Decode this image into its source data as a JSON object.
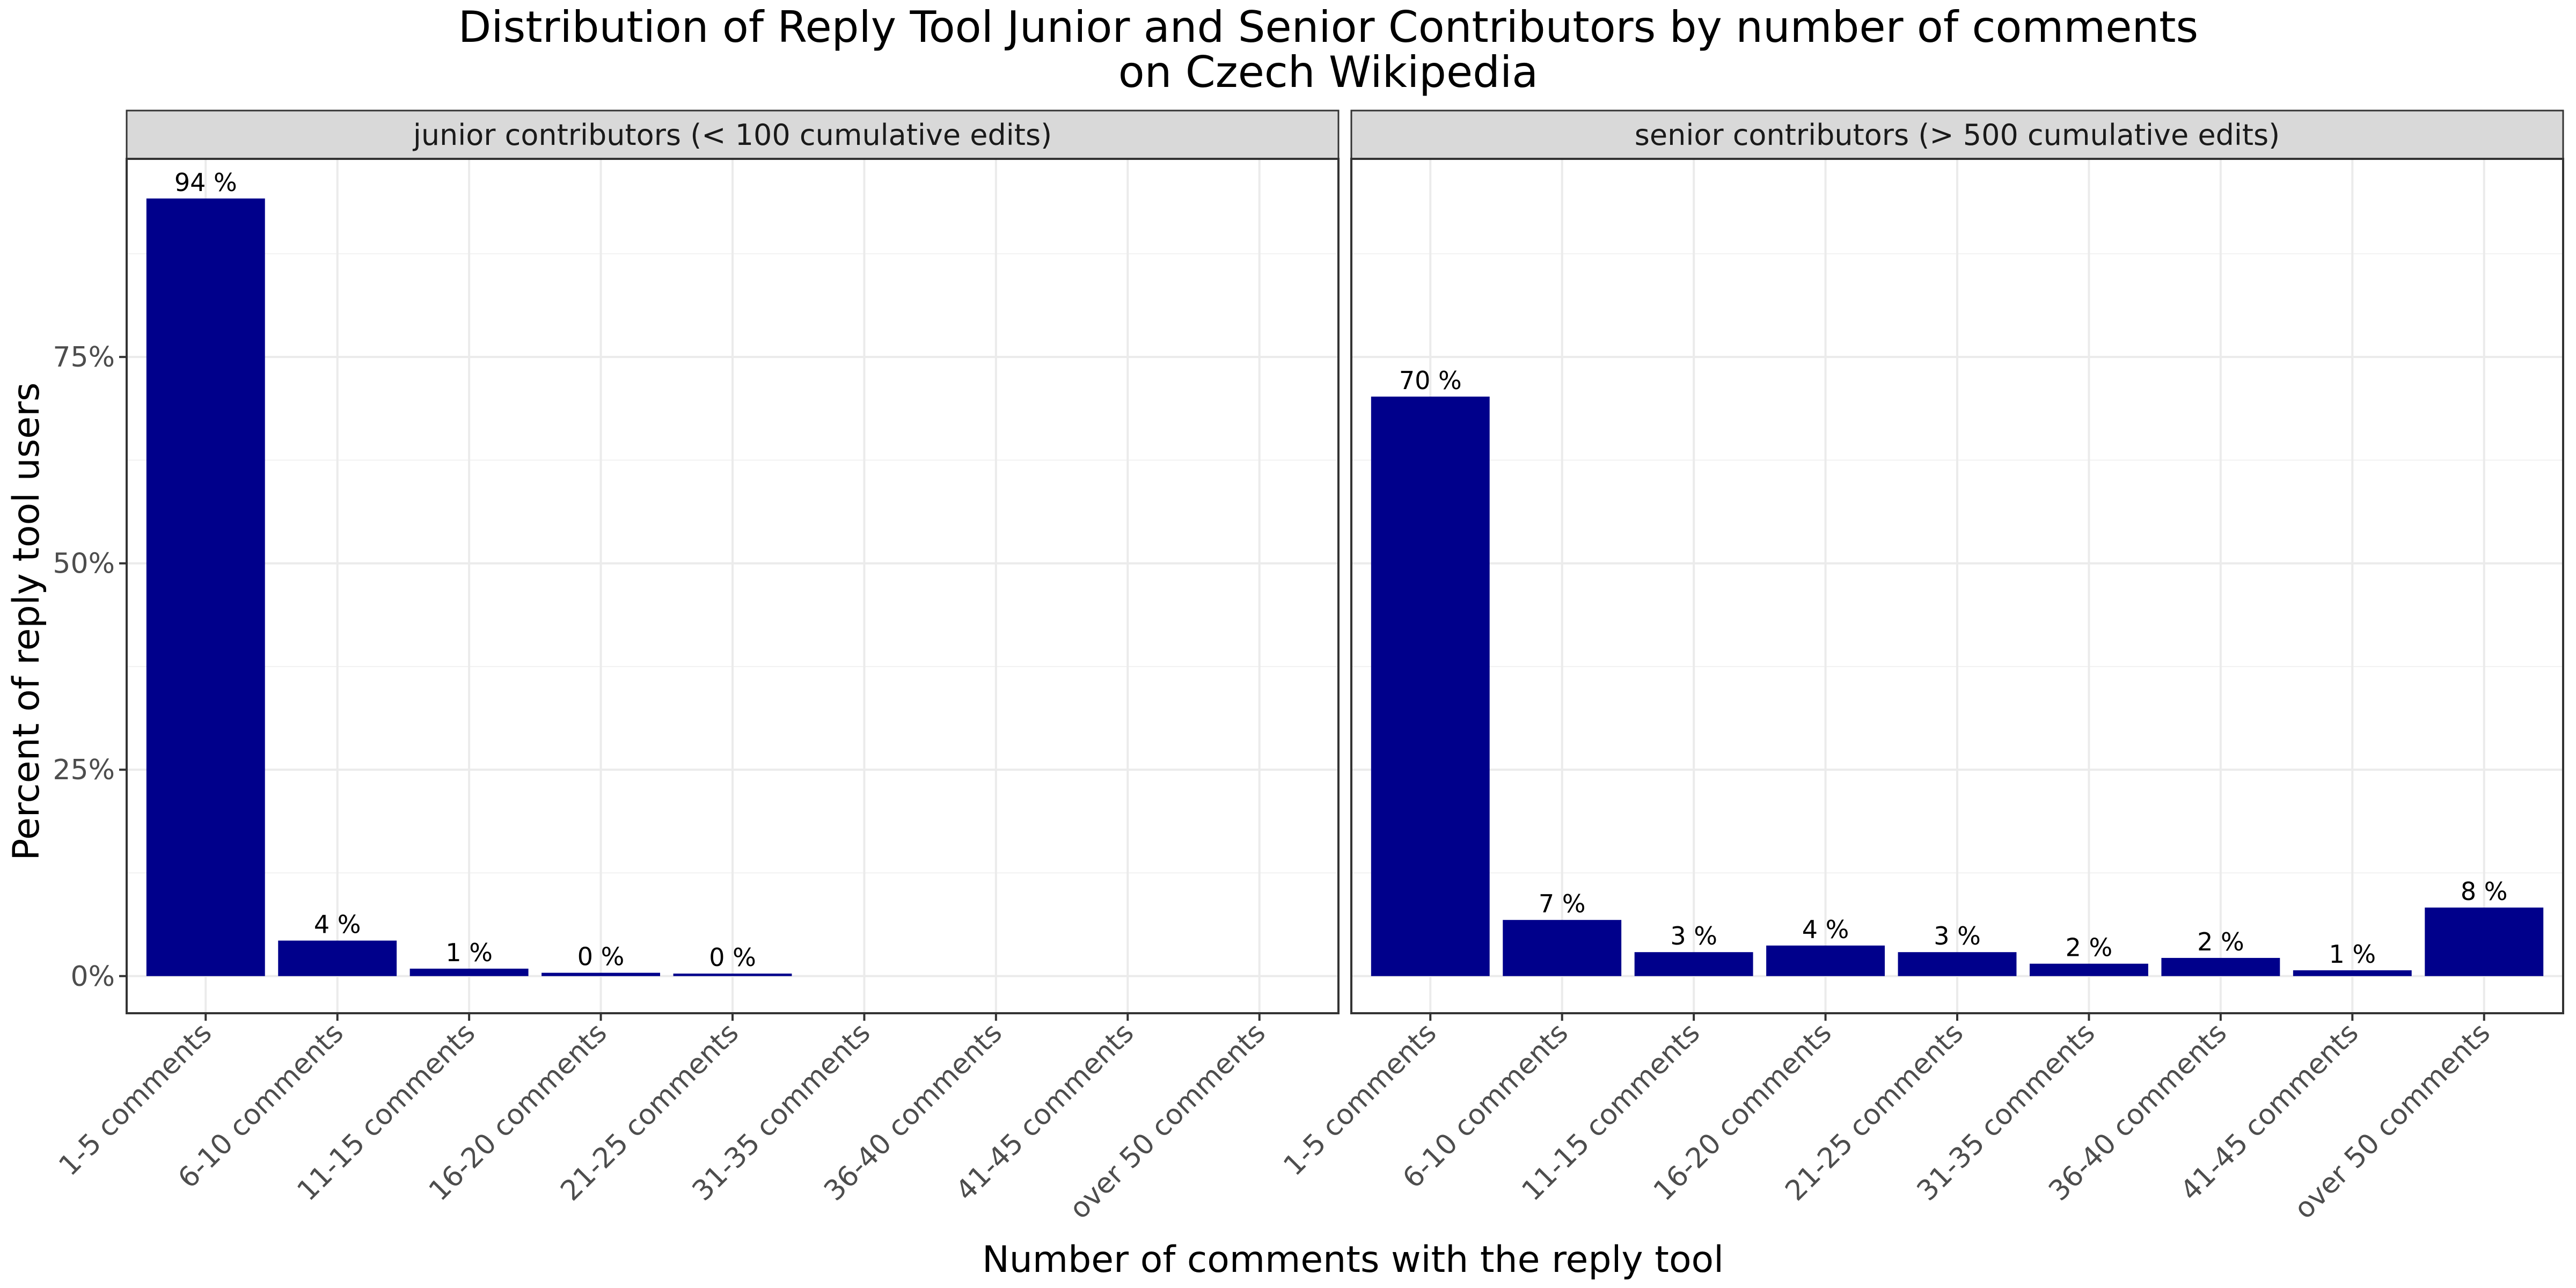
{
  "chart_data": {
    "type": "bar",
    "title": "Distribution of Reply Tool Junior and Senior Contributors by number of comments",
    "title_line2": "on Czech Wikipedia",
    "xlabel": "Number of comments with the reply tool",
    "ylabel": "Percent of reply tool users",
    "categories": [
      "1-5 comments",
      "6-10 comments",
      "11-15 comments",
      "16-20 comments",
      "21-25 comments",
      "31-35 comments",
      "36-40 comments",
      "41-45 comments",
      "over 50 comments"
    ],
    "ylim": [
      -4.5,
      99
    ],
    "y_ticks": [
      0,
      25,
      50,
      75
    ],
    "y_tick_labels": [
      "0%",
      "25%",
      "50%",
      "75%"
    ],
    "grid": true,
    "bar_color": "#00008B",
    "facets": [
      {
        "label": "junior contributors (< 100 cumulative edits)",
        "values": [
          94.2,
          4.3,
          0.9,
          0.4,
          0.3,
          null,
          null,
          null,
          null
        ],
        "data_labels": [
          "94 %",
          "4 %",
          "1 %",
          "0 %",
          "0 %",
          "",
          "",
          "",
          ""
        ]
      },
      {
        "label": "senior contributors (> 500 cumulative edits)",
        "values": [
          70.2,
          6.8,
          2.9,
          3.7,
          2.9,
          1.5,
          2.2,
          0.7,
          8.3
        ],
        "data_labels": [
          "70 %",
          "7 %",
          "3 %",
          "4 %",
          "3 %",
          "2 %",
          "2 %",
          "1 %",
          "8 %"
        ]
      }
    ]
  }
}
